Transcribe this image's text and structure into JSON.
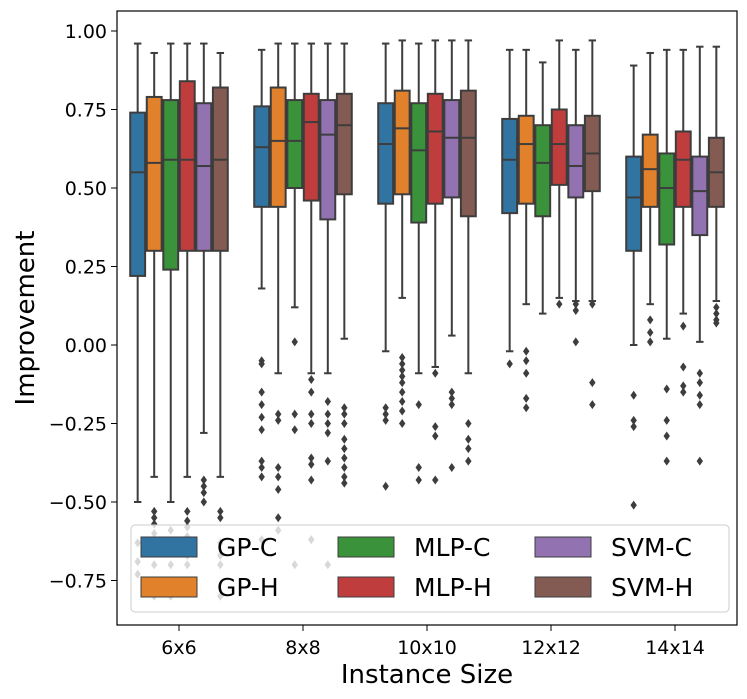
{
  "chart_data": {
    "type": "box",
    "xlabel": "Instance Size",
    "ylabel": "Improvement",
    "ylim": [
      -0.9,
      1.06
    ],
    "yticks": [
      1.0,
      0.75,
      0.5,
      0.25,
      0.0,
      -0.25,
      -0.5,
      -0.75
    ],
    "ytick_labels": [
      "1.00",
      "0.75",
      "0.50",
      "0.25",
      "0.00",
      "−0.25",
      "−0.50",
      "−0.75"
    ],
    "categories": [
      "6x6",
      "8x8",
      "10x10",
      "12x12",
      "14x14"
    ],
    "legend": {
      "placement": "bottom",
      "columns": 3
    },
    "series": [
      {
        "name": "GP-C",
        "color": "#3274a1",
        "boxes": [
          {
            "q1": 0.22,
            "median": 0.55,
            "q3": 0.74,
            "whislo": -0.5,
            "whishi": 0.96,
            "fliers": [
              -0.63,
              -0.69,
              -0.73
            ]
          },
          {
            "q1": 0.44,
            "median": 0.63,
            "q3": 0.76,
            "whislo": 0.18,
            "whishi": 0.94,
            "fliers": [
              -0.05,
              -0.06,
              -0.15,
              -0.19,
              -0.23,
              -0.27,
              -0.37,
              -0.39,
              -0.42,
              -0.62
            ]
          },
          {
            "q1": 0.45,
            "median": 0.64,
            "q3": 0.77,
            "whislo": -0.02,
            "whishi": 0.96,
            "fliers": [
              -0.2,
              -0.22,
              -0.24,
              -0.45
            ]
          },
          {
            "q1": 0.42,
            "median": 0.59,
            "q3": 0.72,
            "whislo": -0.02,
            "whishi": 0.94,
            "fliers": [
              -0.06
            ]
          },
          {
            "q1": 0.3,
            "median": 0.47,
            "q3": 0.6,
            "whislo": 0.0,
            "whishi": 0.89,
            "fliers": [
              -0.16,
              -0.24,
              -0.26,
              -0.51
            ]
          }
        ]
      },
      {
        "name": "GP-H",
        "color": "#e1812c",
        "boxes": [
          {
            "q1": 0.3,
            "median": 0.58,
            "q3": 0.79,
            "whislo": -0.42,
            "whishi": 0.93,
            "fliers": [
              -0.53,
              -0.55,
              -0.57,
              -0.6,
              -0.63,
              -0.66,
              -0.7,
              -0.8
            ]
          },
          {
            "q1": 0.44,
            "median": 0.65,
            "q3": 0.82,
            "whislo": -0.09,
            "whishi": 0.96,
            "fliers": [
              -0.22,
              -0.24,
              -0.39,
              -0.42,
              -0.46,
              -0.55,
              -0.59
            ]
          },
          {
            "q1": 0.48,
            "median": 0.69,
            "q3": 0.81,
            "whislo": 0.15,
            "whishi": 0.97,
            "fliers": [
              -0.04,
              -0.06,
              -0.08,
              -0.1,
              -0.12,
              -0.15,
              -0.18,
              -0.21,
              -0.25
            ]
          },
          {
            "q1": 0.45,
            "median": 0.64,
            "q3": 0.73,
            "whislo": 0.13,
            "whishi": 0.94,
            "fliers": [
              -0.02,
              -0.05,
              -0.09,
              -0.17,
              -0.2
            ]
          },
          {
            "q1": 0.44,
            "median": 0.56,
            "q3": 0.67,
            "whislo": 0.13,
            "whishi": 0.93,
            "fliers": [
              0.01,
              0.04,
              0.08
            ]
          }
        ]
      },
      {
        "name": "MLP-C",
        "color": "#3a923a",
        "boxes": [
          {
            "q1": 0.24,
            "median": 0.59,
            "q3": 0.78,
            "whislo": -0.5,
            "whishi": 0.96,
            "fliers": [
              -0.59,
              -0.63,
              -0.7,
              -0.75,
              -0.8
            ]
          },
          {
            "q1": 0.5,
            "median": 0.65,
            "q3": 0.78,
            "whislo": 0.12,
            "whishi": 0.96,
            "fliers": [
              0.01,
              -0.22,
              -0.27,
              -0.7
            ]
          },
          {
            "q1": 0.39,
            "median": 0.62,
            "q3": 0.77,
            "whislo": -0.09,
            "whishi": 0.96,
            "fliers": [
              -0.19,
              -0.39,
              -0.43
            ]
          },
          {
            "q1": 0.41,
            "median": 0.58,
            "q3": 0.7,
            "whislo": 0.1,
            "whishi": 0.9,
            "fliers": []
          },
          {
            "q1": 0.32,
            "median": 0.5,
            "q3": 0.61,
            "whislo": 0.02,
            "whishi": 0.94,
            "fliers": [
              -0.14,
              -0.24,
              -0.29,
              -0.37
            ]
          }
        ]
      },
      {
        "name": "MLP-H",
        "color": "#c03d3e",
        "boxes": [
          {
            "q1": 0.3,
            "median": 0.59,
            "q3": 0.84,
            "whislo": -0.42,
            "whishi": 0.96,
            "fliers": [
              -0.53,
              -0.56,
              -0.58,
              -0.61,
              -0.65,
              -0.67,
              -0.7
            ]
          },
          {
            "q1": 0.46,
            "median": 0.71,
            "q3": 0.8,
            "whislo": -0.09,
            "whishi": 0.96,
            "fliers": [
              -0.11,
              -0.15,
              -0.22,
              -0.25,
              -0.36,
              -0.38,
              -0.43,
              -0.62
            ]
          },
          {
            "q1": 0.45,
            "median": 0.68,
            "q3": 0.8,
            "whislo": -0.07,
            "whishi": 0.97,
            "fliers": [
              -0.09,
              -0.26,
              -0.29,
              -0.43
            ]
          },
          {
            "q1": 0.51,
            "median": 0.64,
            "q3": 0.75,
            "whislo": 0.15,
            "whishi": 0.97,
            "fliers": [
              0.13
            ]
          },
          {
            "q1": 0.44,
            "median": 0.59,
            "q3": 0.68,
            "whislo": 0.1,
            "whishi": 0.94,
            "fliers": [
              0.06,
              -0.07,
              -0.13,
              -0.15
            ]
          }
        ]
      },
      {
        "name": "SVM-C",
        "color": "#9372b2",
        "boxes": [
          {
            "q1": 0.3,
            "median": 0.57,
            "q3": 0.77,
            "whislo": -0.28,
            "whishi": 0.96,
            "fliers": [
              -0.43,
              -0.45,
              -0.47,
              -0.5
            ]
          },
          {
            "q1": 0.4,
            "median": 0.67,
            "q3": 0.78,
            "whislo": -0.09,
            "whishi": 0.96,
            "fliers": [
              -0.18,
              -0.22,
              -0.25,
              -0.28,
              -0.37,
              -0.7
            ]
          },
          {
            "q1": 0.47,
            "median": 0.66,
            "q3": 0.78,
            "whislo": 0.03,
            "whishi": 0.97,
            "fliers": [
              -0.15,
              -0.17,
              -0.19,
              -0.39
            ]
          },
          {
            "q1": 0.47,
            "median": 0.57,
            "q3": 0.7,
            "whislo": 0.14,
            "whishi": 0.94,
            "fliers": [
              0.11,
              0.13,
              0.01
            ]
          },
          {
            "q1": 0.35,
            "median": 0.49,
            "q3": 0.6,
            "whislo": 0.01,
            "whishi": 0.95,
            "fliers": [
              -0.09,
              -0.12,
              -0.16,
              -0.19,
              -0.37
            ]
          }
        ]
      },
      {
        "name": "SVM-H",
        "color": "#845b53",
        "boxes": [
          {
            "q1": 0.3,
            "median": 0.59,
            "q3": 0.82,
            "whislo": -0.42,
            "whishi": 0.93,
            "fliers": [
              -0.53,
              -0.55,
              -0.63,
              -0.67,
              -0.7,
              -0.8
            ]
          },
          {
            "q1": 0.48,
            "median": 0.7,
            "q3": 0.8,
            "whislo": 0.02,
            "whishi": 0.96,
            "fliers": [
              -0.2,
              -0.22,
              -0.25,
              -0.3,
              -0.33,
              -0.36,
              -0.39,
              -0.42,
              -0.44
            ]
          },
          {
            "q1": 0.41,
            "median": 0.66,
            "q3": 0.81,
            "whislo": -0.09,
            "whishi": 0.97,
            "fliers": [
              -0.25,
              -0.3,
              -0.33,
              -0.37
            ]
          },
          {
            "q1": 0.49,
            "median": 0.61,
            "q3": 0.73,
            "whislo": 0.14,
            "whishi": 0.97,
            "fliers": [
              0.13,
              -0.12,
              -0.19
            ]
          },
          {
            "q1": 0.44,
            "median": 0.55,
            "q3": 0.66,
            "whislo": 0.14,
            "whishi": 0.95,
            "fliers": [
              0.12,
              0.1,
              0.08,
              0.07
            ]
          }
        ]
      }
    ]
  }
}
